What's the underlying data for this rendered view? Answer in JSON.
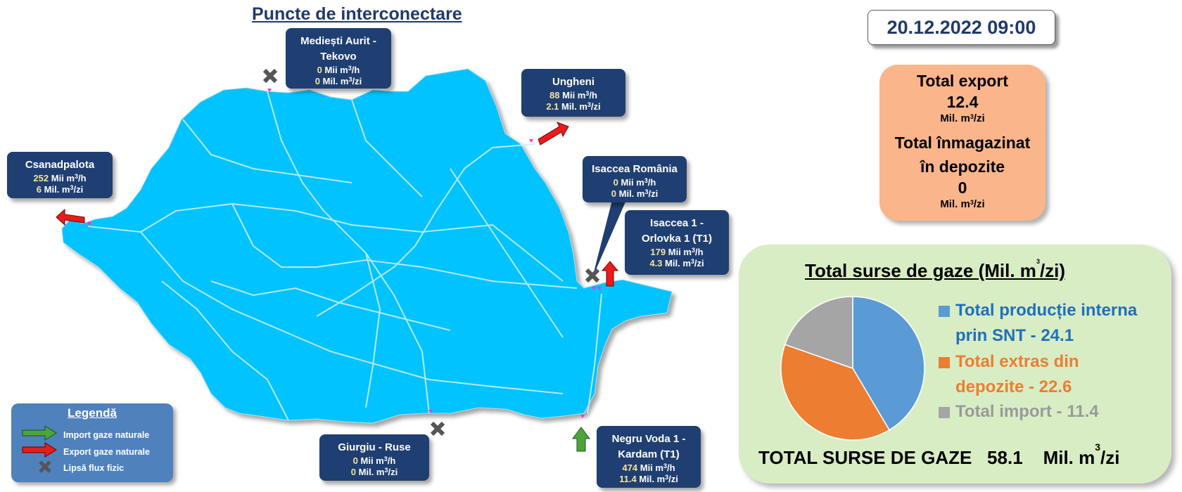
{
  "title": "Puncte de interconectare",
  "datetime": "20.12.2022 09:00",
  "totals": {
    "export_label": "Total export",
    "export_value": "12.4",
    "export_unit": "Mil. m",
    "export_unit_tail": "/zi",
    "storage_label_1": "Total înmagazinat",
    "storage_label_2": "în depozite",
    "storage_value": "0",
    "storage_unit": "Mil. m",
    "storage_unit_tail": "/zi"
  },
  "points": [
    {
      "name": "Mediești Aurit -",
      "name2": "Tekovo",
      "hourly": "0",
      "daily": "0",
      "status": "no-flow"
    },
    {
      "name": "Ungheni",
      "name2": "",
      "hourly": "88",
      "daily": "2.1",
      "status": "export"
    },
    {
      "name": "Csanadpalota",
      "name2": "",
      "hourly": "252",
      "daily": "6",
      "status": "export"
    },
    {
      "name": "Isaccea România",
      "name2": "",
      "hourly": "0",
      "daily": "0",
      "status": "no-flow"
    },
    {
      "name": "Isaccea 1 -",
      "name2": "Orlovka 1 (T1)",
      "hourly": "179",
      "daily": "4.3",
      "status": "export"
    },
    {
      "name": "Giurgiu - Ruse",
      "name2": "",
      "hourly": "0",
      "daily": "0",
      "status": "no-flow"
    },
    {
      "name": "Negru Voda 1 -",
      "name2": "Kardam (T1)",
      "hourly": "474",
      "daily": "11.4",
      "status": "import"
    }
  ],
  "units": {
    "hourly": "Mii  m",
    "hourly_tail": "/h",
    "daily": "Mil. m",
    "daily_tail": "/zi",
    "sup": "3"
  },
  "legend": {
    "title": "Legendă",
    "import": "Import gaze naturale",
    "export": "Export gaze naturale",
    "noflow": "Lipsă flux fizic"
  },
  "chart_data": {
    "type": "pie",
    "title": "Total surse de gaze  (Mil. m",
    "title_tail": "/zi)",
    "slices": [
      {
        "label": "Total producție interna prin SNT",
        "label_1": "Total producție interna",
        "label_2": "prin SNT - 24.1",
        "value": 24.1,
        "color": "#5b9bd5",
        "text_color": "#1f6fbf"
      },
      {
        "label": "Total extras din depozite",
        "label_1": "Total extras din",
        "label_2": "depozite - 22.6",
        "value": 22.6,
        "color": "#ed7d31",
        "text_color": "#ed7d31"
      },
      {
        "label": "Total import",
        "label_1": "Total import - 11.4",
        "label_2": "",
        "value": 11.4,
        "color": "#a5a5a5",
        "text_color": "#9a9a9a"
      }
    ],
    "total_label": "TOTAL SURSE DE GAZE",
    "total_value": "58.1",
    "total_unit": "Mil. m",
    "total_unit_tail": "/zi"
  },
  "colors": {
    "map_fill": "#00c3ff",
    "box_bg": "#1f3f72",
    "export_arrow": "#e81c1c",
    "import_arrow": "#4ea33c"
  }
}
